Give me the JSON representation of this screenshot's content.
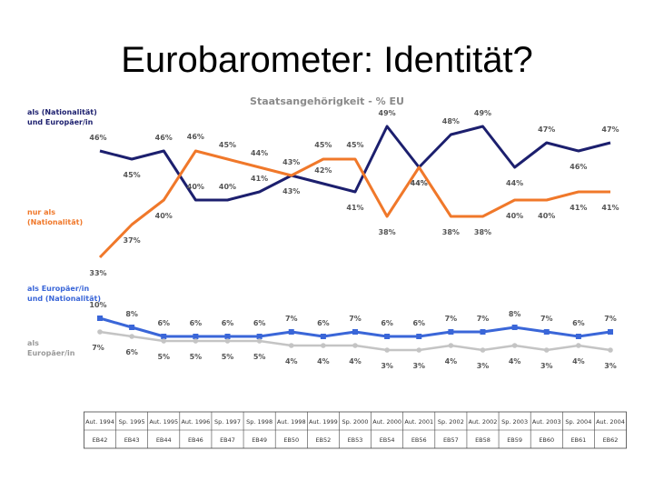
{
  "page_title": "Eurobarometer: Identität?",
  "chart_data": {
    "type": "line",
    "title": "Staatsangehörigkeit - % EU",
    "categories": [
      "Aut. 1994",
      "Sp. 1995",
      "Aut. 1995",
      "Aut. 1996",
      "Sp. 1997",
      "Sp. 1998",
      "Aut. 1998",
      "Aut. 1999",
      "Sp. 2000",
      "Aut. 2000",
      "Aut. 2001",
      "Sp. 2002",
      "Aut. 2002",
      "Sp. 2003",
      "Aut. 2003",
      "Sp. 2004",
      "Aut. 2004"
    ],
    "surveys": [
      "EB42",
      "EB43",
      "EB44",
      "EB46",
      "EB47",
      "EB49",
      "EB50",
      "EB52",
      "EB53",
      "EB54",
      "EB56",
      "EB57",
      "EB58",
      "EB59",
      "EB60",
      "EB61",
      "EB62"
    ],
    "series": [
      {
        "name": "als (Nationalität) und Europäer/in",
        "values": [
          46,
          45,
          46,
          40,
          40,
          41,
          43,
          42,
          41,
          49,
          44,
          48,
          49,
          44,
          47,
          46,
          47
        ],
        "color": "#1c1f6e"
      },
      {
        "name": "nur als (Nationalität)",
        "values": [
          33,
          37,
          40,
          46,
          45,
          44,
          43,
          45,
          45,
          38,
          44,
          38,
          38,
          40,
          40,
          41,
          41
        ],
        "color": "#f0782a"
      },
      {
        "name": "als Europäer/in und (Nationalität)",
        "values": [
          10,
          8,
          6,
          6,
          6,
          6,
          7,
          6,
          7,
          6,
          6,
          7,
          7,
          8,
          7,
          6,
          7
        ],
        "color": "#3a66d8"
      },
      {
        "name": "als Europäer/in",
        "values": [
          7,
          6,
          5,
          5,
          5,
          5,
          4,
          4,
          4,
          3,
          3,
          4,
          3,
          4,
          3,
          4,
          3
        ],
        "color": "#c4c4c4"
      }
    ],
    "ylabel": "%",
    "ylim": [
      0,
      55
    ]
  },
  "legend_labels": [
    {
      "line1": "als (Nationalität)",
      "line2": "und Europäer/in",
      "color": "#1c1f6e"
    },
    {
      "line1": "nur als",
      "line2": "(Nationalität)",
      "color": "#f0782a"
    },
    {
      "line1": "als Europäer/in",
      "line2": "und (Nationalität)",
      "color": "#3a66d8"
    },
    {
      "line1": "als",
      "line2": "Europäer/in",
      "color": "#9a9a9a"
    }
  ]
}
